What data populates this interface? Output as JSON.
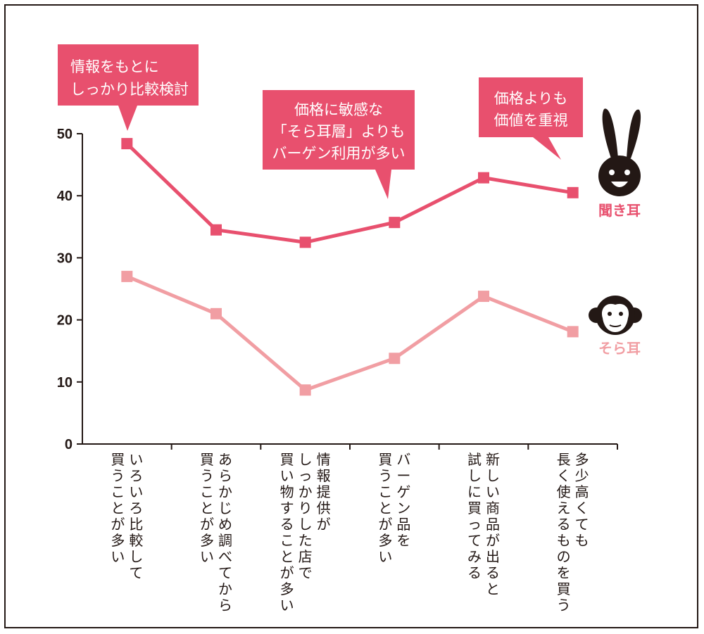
{
  "chart_data": {
    "type": "line",
    "categories": [
      [
        "いろいろ比較して",
        "買うことが多い"
      ],
      [
        "あらかじめ調べてから",
        "買うことが多い"
      ],
      [
        "情報提供が",
        "しっかりした店で",
        "買い物することが多い"
      ],
      [
        "バーゲン品を",
        "買うことが多い"
      ],
      [
        "新しい商品が出ると",
        "試しに買ってみる"
      ],
      [
        "多少高くても",
        "長く使えるものを買う"
      ]
    ],
    "series": [
      {
        "name": "聞き耳",
        "values": [
          48.4,
          34.5,
          32.5,
          35.7,
          42.9,
          40.5
        ],
        "color": "#e8506e"
      },
      {
        "name": "そら耳",
        "values": [
          27.0,
          21.0,
          8.7,
          13.8,
          23.8,
          18.1
        ],
        "color": "#f19ea3"
      }
    ],
    "y_ticks": [
      "0",
      "10",
      "20",
      "30",
      "40",
      "50"
    ],
    "ylim": [
      0,
      50
    ],
    "grid": false,
    "legend": "right"
  },
  "callouts": [
    {
      "lines": [
        "情報をもとに",
        "しっかり比較検討"
      ]
    },
    {
      "lines": [
        "価格に敏感な",
        "「そら耳層」よりも",
        "バーゲン利用が多い"
      ]
    },
    {
      "lines": [
        "価格よりも",
        "価値を重視"
      ]
    }
  ],
  "legend_icons": [
    "rabbit-icon",
    "monkey-icon"
  ],
  "colors": {
    "callout": "#e8506e",
    "axis": "#231815"
  }
}
